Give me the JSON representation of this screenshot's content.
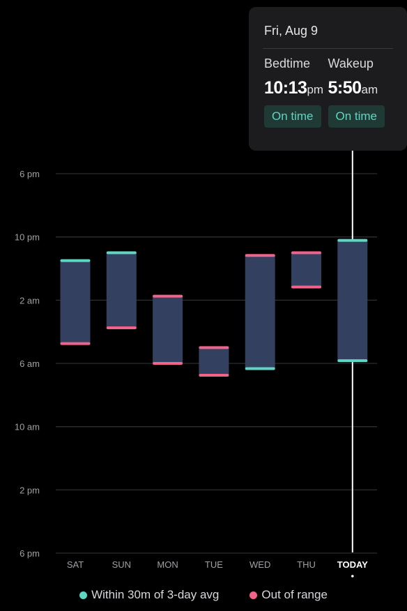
{
  "chart_data": {
    "type": "floating-bar",
    "y_axis": {
      "ticks": [
        "6 pm",
        "10 pm",
        "2 am",
        "6 am",
        "10 am",
        "2 pm",
        "6 pm"
      ]
    },
    "categories": [
      "SAT",
      "SUN",
      "MON",
      "TUE",
      "WED",
      "THU",
      "TODAY"
    ],
    "bars": [
      {
        "day": "SAT",
        "bedtime": "11:30 pm",
        "wakeup": "4:45 am",
        "bedtime_status": "within",
        "wakeup_status": "out"
      },
      {
        "day": "SUN",
        "bedtime": "11:00 pm",
        "wakeup": "3:45 am",
        "bedtime_status": "within",
        "wakeup_status": "out"
      },
      {
        "day": "MON",
        "bedtime": "1:45 am",
        "wakeup": "6:00 am",
        "bedtime_status": "out",
        "wakeup_status": "out"
      },
      {
        "day": "TUE",
        "bedtime": "5:00 am",
        "wakeup": "6:45 am",
        "bedtime_status": "out",
        "wakeup_status": "out"
      },
      {
        "day": "WED",
        "bedtime": "11:10 pm",
        "wakeup": "6:20 am",
        "bedtime_status": "out",
        "wakeup_status": "within"
      },
      {
        "day": "THU",
        "bedtime": "11:00 pm",
        "wakeup": "1:10 am",
        "bedtime_status": "out",
        "wakeup_status": "out"
      },
      {
        "day": "TODAY",
        "bedtime": "10:13 pm",
        "wakeup": "5:50 am",
        "bedtime_status": "within",
        "wakeup_status": "within"
      }
    ],
    "bar_values_hours_after_6pm": [
      [
        5.5,
        10.75
      ],
      [
        5.0,
        9.75
      ],
      [
        7.75,
        12.0
      ],
      [
        11.0,
        12.75
      ],
      [
        5.17,
        12.33
      ],
      [
        5.0,
        7.17
      ],
      [
        4.22,
        11.83
      ]
    ],
    "ylim_hours_after_6pm": [
      0,
      24
    ],
    "legend": [
      {
        "label": "Within 30m of 3-day avg",
        "color": "#5fd5c3"
      },
      {
        "label": "Out of range",
        "color": "#f0648c"
      }
    ],
    "selected_index": 6
  },
  "tooltip": {
    "date": "Fri, Aug 9",
    "bedtime_label": "Bedtime",
    "bedtime_value": "10:13",
    "bedtime_suffix": "pm",
    "bedtime_status": "On time",
    "wakeup_label": "Wakeup",
    "wakeup_value": "5:50",
    "wakeup_suffix": "am",
    "wakeup_status": "On time"
  },
  "colors": {
    "bar": "#334060",
    "within": "#5fd5c3",
    "out": "#f0648c",
    "grid": "#2e2e30",
    "axis_text": "#a0a0a5",
    "today_line": "#ffffff"
  }
}
